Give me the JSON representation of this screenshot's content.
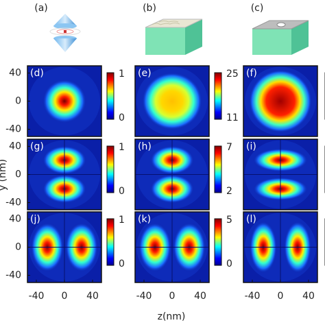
{
  "schematics": [
    "(a)",
    "(b)",
    "(c)"
  ],
  "maps": [
    {
      "label": "(d)",
      "colorbar": [
        "1",
        "0"
      ]
    },
    {
      "label": "(e)",
      "colorbar": [
        "25",
        "11"
      ]
    },
    {
      "label": "(f)"
    },
    {
      "label": "(g)",
      "colorbar": [
        "1",
        "0"
      ]
    },
    {
      "label": "(h)",
      "colorbar": [
        "7",
        "2"
      ]
    },
    {
      "label": "(i)"
    },
    {
      "label": "(j)",
      "colorbar": [
        "1",
        "0"
      ]
    },
    {
      "label": "(k)",
      "colorbar": [
        "5",
        "0"
      ]
    },
    {
      "label": "(l)"
    }
  ],
  "y_tick_labels": [
    "40",
    "0",
    "-40"
  ],
  "x_tick_labels": [
    "-40",
    "0",
    "40"
  ],
  "x_axis_label": "z(nm)",
  "y_axis_label": "y (nm)"
}
